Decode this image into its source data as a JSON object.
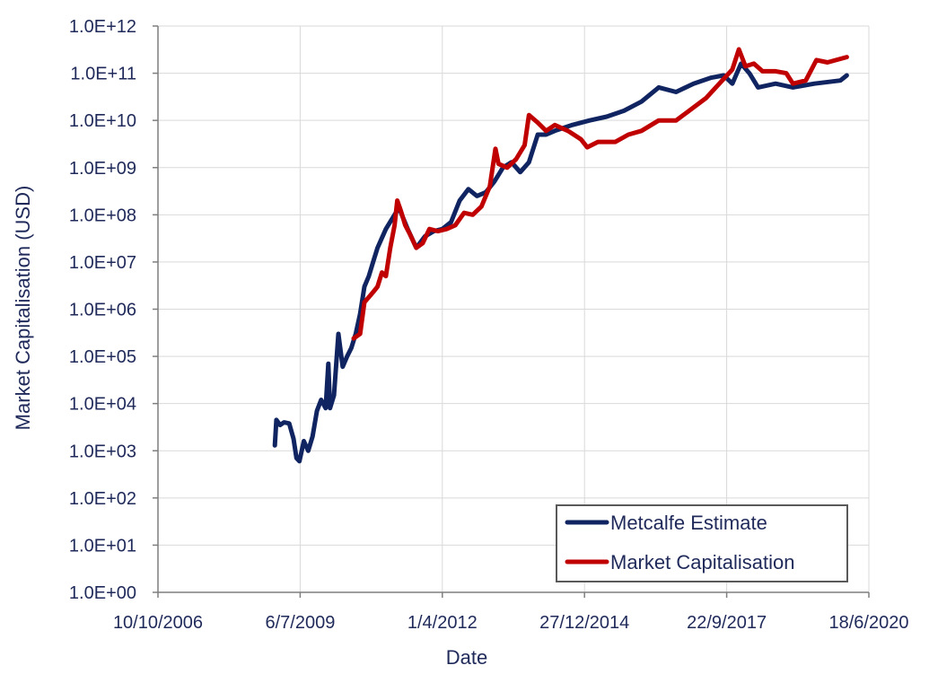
{
  "chart_data": {
    "type": "line",
    "title": "",
    "xlabel": "Date",
    "ylabel": "Market Capitalisation (USD)",
    "yscale": "log",
    "ylim": [
      "1.0E+00",
      "1.0E+12"
    ],
    "xlim": [
      "10/10/2006",
      "18/6/2020"
    ],
    "grid": true,
    "legend_position": "bottom-right",
    "y_tick_labels": [
      "1.0E+00",
      "1.0E+01",
      "1.0E+02",
      "1.0E+03",
      "1.0E+04",
      "1.0E+05",
      "1.0E+06",
      "1.0E+07",
      "1.0E+08",
      "1.0E+09",
      "1.0E+10",
      "1.0E+11",
      "1.0E+12"
    ],
    "x_tick_labels": [
      "10/10/2006",
      "6/7/2009",
      "1/4/2012",
      "27/12/2014",
      "22/9/2017",
      "18/6/2020"
    ],
    "series": [
      {
        "name": "Metcalfe Estimate",
        "color": "#0f2460",
        "points": [
          [
            "2009-01-09",
            1300.0
          ],
          [
            "2009-01-20",
            4500.0
          ],
          [
            "2009-02-15",
            3500.0
          ],
          [
            "2009-03-15",
            4000.0
          ],
          [
            "2009-04-20",
            3800.0
          ],
          [
            "2009-05-20",
            1800.0
          ],
          [
            "2009-06-10",
            700.0
          ],
          [
            "2009-07-01",
            600.0
          ],
          [
            "2009-08-01",
            1600.0
          ],
          [
            "2009-09-01",
            1000.0
          ],
          [
            "2009-10-01",
            2000.0
          ],
          [
            "2009-11-01",
            7000.0
          ],
          [
            "2009-12-01",
            12000.0
          ],
          [
            "2010-01-01",
            8000.0
          ],
          [
            "2010-01-20",
            70000.0
          ],
          [
            "2010-02-01",
            8000.0
          ],
          [
            "2010-03-01",
            15000.0
          ],
          [
            "2010-04-01",
            300000.0
          ],
          [
            "2010-05-01",
            60000.0
          ],
          [
            "2010-06-01",
            100000.0
          ],
          [
            "2010-07-01",
            150000.0
          ],
          [
            "2010-08-01",
            300000.0
          ],
          [
            "2010-09-01",
            800000.0
          ],
          [
            "2010-10-01",
            3000000.0
          ],
          [
            "2010-11-01",
            5000000.0
          ],
          [
            "2010-12-01",
            10000000.0
          ],
          [
            "2011-01-01",
            20000000.0
          ],
          [
            "2011-03-01",
            50000000.0
          ],
          [
            "2011-05-01",
            100000000.0
          ],
          [
            "2011-06-01",
            140000000.0
          ],
          [
            "2011-08-01",
            50000000.0
          ],
          [
            "2011-10-01",
            20000000.0
          ],
          [
            "2011-12-01",
            35000000.0
          ],
          [
            "2012-02-01",
            45000000.0
          ],
          [
            "2012-04-01",
            50000000.0
          ],
          [
            "2012-06-01",
            70000000.0
          ],
          [
            "2012-08-01",
            200000000.0
          ],
          [
            "2012-10-01",
            350000000.0
          ],
          [
            "2012-12-01",
            250000000.0
          ],
          [
            "2013-02-01",
            300000000.0
          ],
          [
            "2013-04-01",
            500000000.0
          ],
          [
            "2013-06-01",
            1000000000.0
          ],
          [
            "2013-08-01",
            1300000000.0
          ],
          [
            "2013-10-01",
            800000000.0
          ],
          [
            "2013-12-01",
            1300000000.0
          ],
          [
            "2014-02-01",
            5000000000.0
          ],
          [
            "2014-04-01",
            5000000000.0
          ],
          [
            "2014-06-01",
            6000000000.0
          ],
          [
            "2014-10-01",
            8000000000.0
          ],
          [
            "2015-02-01",
            10000000000.0
          ],
          [
            "2015-06-01",
            12000000000.0
          ],
          [
            "2015-10-01",
            16000000000.0
          ],
          [
            "2016-02-01",
            25000000000.0
          ],
          [
            "2016-06-01",
            50000000000.0
          ],
          [
            "2016-10-01",
            40000000000.0
          ],
          [
            "2017-02-01",
            60000000000.0
          ],
          [
            "2017-06-01",
            80000000000.0
          ],
          [
            "2017-09-01",
            90000000000.0
          ],
          [
            "2017-11-01",
            60000000000.0
          ],
          [
            "2018-01-01",
            160000000000.0
          ],
          [
            "2018-03-01",
            100000000000.0
          ],
          [
            "2018-05-01",
            50000000000.0
          ],
          [
            "2018-09-01",
            60000000000.0
          ],
          [
            "2019-01-01",
            50000000000.0
          ],
          [
            "2019-06-01",
            60000000000.0
          ],
          [
            "2019-12-01",
            70000000000.0
          ],
          [
            "2020-01-15",
            90000000000.0
          ]
        ]
      },
      {
        "name": "Market Capitalisation",
        "color": "#c00000",
        "points": [
          [
            "2010-07-17",
            240000.0
          ],
          [
            "2010-09-01",
            300000.0
          ],
          [
            "2010-10-01",
            1400000.0
          ],
          [
            "2010-11-01",
            1800000.0
          ],
          [
            "2010-12-01",
            2300000.0
          ],
          [
            "2011-01-01",
            3000000.0
          ],
          [
            "2011-02-01",
            6000000.0
          ],
          [
            "2011-03-01",
            5000000.0
          ],
          [
            "2011-04-01",
            20000000.0
          ],
          [
            "2011-05-01",
            60000000.0
          ],
          [
            "2011-05-20",
            200000000.0
          ],
          [
            "2011-06-15",
            120000000.0
          ],
          [
            "2011-07-15",
            60000000.0
          ],
          [
            "2011-08-15",
            40000000.0
          ],
          [
            "2011-10-01",
            20000000.0
          ],
          [
            "2011-11-15",
            25000000.0
          ],
          [
            "2012-01-01",
            50000000.0
          ],
          [
            "2012-03-01",
            45000000.0
          ],
          [
            "2012-05-01",
            50000000.0
          ],
          [
            "2012-07-01",
            60000000.0
          ],
          [
            "2012-09-01",
            110000000.0
          ],
          [
            "2012-11-01",
            100000000.0
          ],
          [
            "2013-01-01",
            150000000.0
          ],
          [
            "2013-03-01",
            400000000.0
          ],
          [
            "2013-04-10",
            2500000000.0
          ],
          [
            "2013-05-01",
            1200000000.0
          ],
          [
            "2013-07-01",
            1000000000.0
          ],
          [
            "2013-09-01",
            1500000000.0
          ],
          [
            "2013-11-01",
            3000000000.0
          ],
          [
            "2013-12-01",
            13000000000.0
          ],
          [
            "2014-02-01",
            9000000000.0
          ],
          [
            "2014-04-01",
            6000000000.0
          ],
          [
            "2014-06-01",
            8000000000.0
          ],
          [
            "2014-09-01",
            6000000000.0
          ],
          [
            "2014-12-01",
            4000000000.0
          ],
          [
            "2015-01-15",
            2700000000.0
          ],
          [
            "2015-04-01",
            3500000000.0
          ],
          [
            "2015-08-01",
            3500000000.0
          ],
          [
            "2015-11-01",
            5000000000.0
          ],
          [
            "2016-02-01",
            6000000000.0
          ],
          [
            "2016-06-01",
            10000000000.0
          ],
          [
            "2016-10-01",
            10000000000.0
          ],
          [
            "2017-01-01",
            16000000000.0
          ],
          [
            "2017-05-01",
            30000000000.0
          ],
          [
            "2017-08-01",
            60000000000.0
          ],
          [
            "2017-11-01",
            120000000000.0
          ],
          [
            "2017-12-17",
            320000000000.0
          ],
          [
            "2018-02-01",
            140000000000.0
          ],
          [
            "2018-04-01",
            160000000000.0
          ],
          [
            "2018-06-01",
            110000000000.0
          ],
          [
            "2018-09-01",
            110000000000.0
          ],
          [
            "2018-11-15",
            100000000000.0
          ],
          [
            "2019-01-01",
            60000000000.0
          ],
          [
            "2019-04-01",
            70000000000.0
          ],
          [
            "2019-06-15",
            190000000000.0
          ],
          [
            "2019-09-01",
            170000000000.0
          ],
          [
            "2020-01-15",
            220000000000.0
          ]
        ]
      }
    ]
  }
}
